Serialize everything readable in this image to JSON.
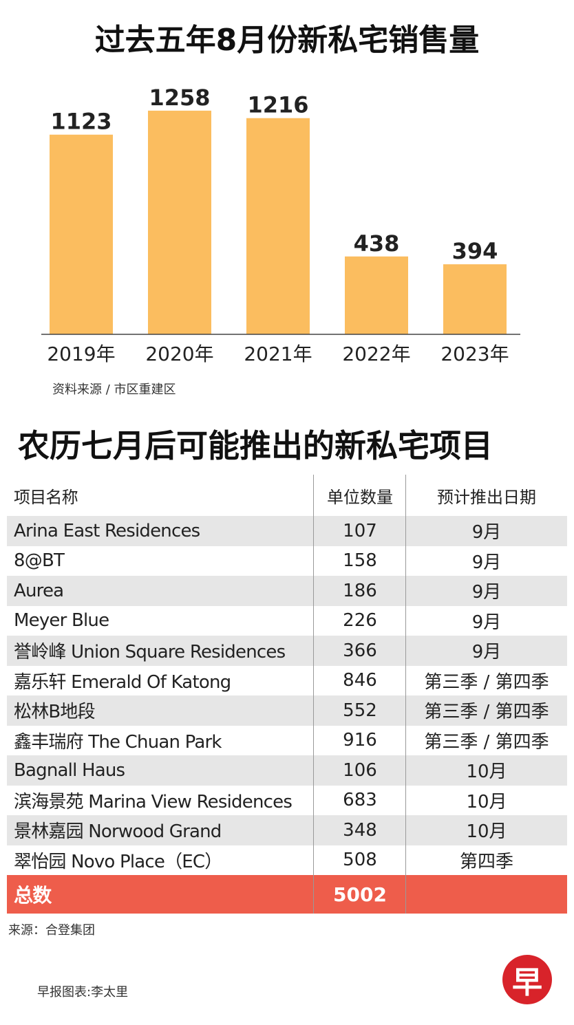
{
  "chart_data": {
    "type": "bar",
    "title": "过去五年8月份新私宅销售量",
    "categories": [
      "2019年",
      "2020年",
      "2021年",
      "2022年",
      "2023年"
    ],
    "values": [
      1123,
      1258,
      1216,
      438,
      394
    ],
    "ylim": [
      0,
      1300
    ],
    "grid": false,
    "bar_color": "#fbbd5f",
    "source": "资料来源 / 市区重建区"
  },
  "table": {
    "title": "农历七月后可能推出的新私宅项目",
    "headers": [
      "项目名称",
      "单位数量",
      "预计推出日期"
    ],
    "rows": [
      {
        "name": "Arina East Residences",
        "units": "107",
        "date": "9月"
      },
      {
        "name": "8@BT",
        "units": "158",
        "date": "9月"
      },
      {
        "name": "Aurea",
        "units": "186",
        "date": "9月"
      },
      {
        "name": "Meyer Blue",
        "units": "226",
        "date": "9月"
      },
      {
        "name": "誉岭峰 Union Square Residences",
        "units": "366",
        "date": "9月"
      },
      {
        "name": "嘉乐轩 Emerald Of Katong",
        "units": "846",
        "date": "第三季 / 第四季"
      },
      {
        "name": "松林B地段",
        "units": "552",
        "date": "第三季 / 第四季"
      },
      {
        "name": "鑫丰瑞府 The Chuan Park",
        "units": "916",
        "date": "第三季 / 第四季"
      },
      {
        "name": "Bagnall Haus",
        "units": "106",
        "date": "10月"
      },
      {
        "name": "滨海景苑 Marina View Residences",
        "units": "683",
        "date": "10月"
      },
      {
        "name": "景林嘉园 Norwood Grand",
        "units": "348",
        "date": "10月"
      },
      {
        "name": "翠怡园 Novo Place（EC）",
        "units": "508",
        "date": "第四季"
      }
    ],
    "total_label": "总数",
    "total_value": "5002",
    "total_color": "#ee5d4b",
    "source": "来源：合登集团"
  },
  "credit": "早报图表:李太里",
  "logo_text": "早"
}
